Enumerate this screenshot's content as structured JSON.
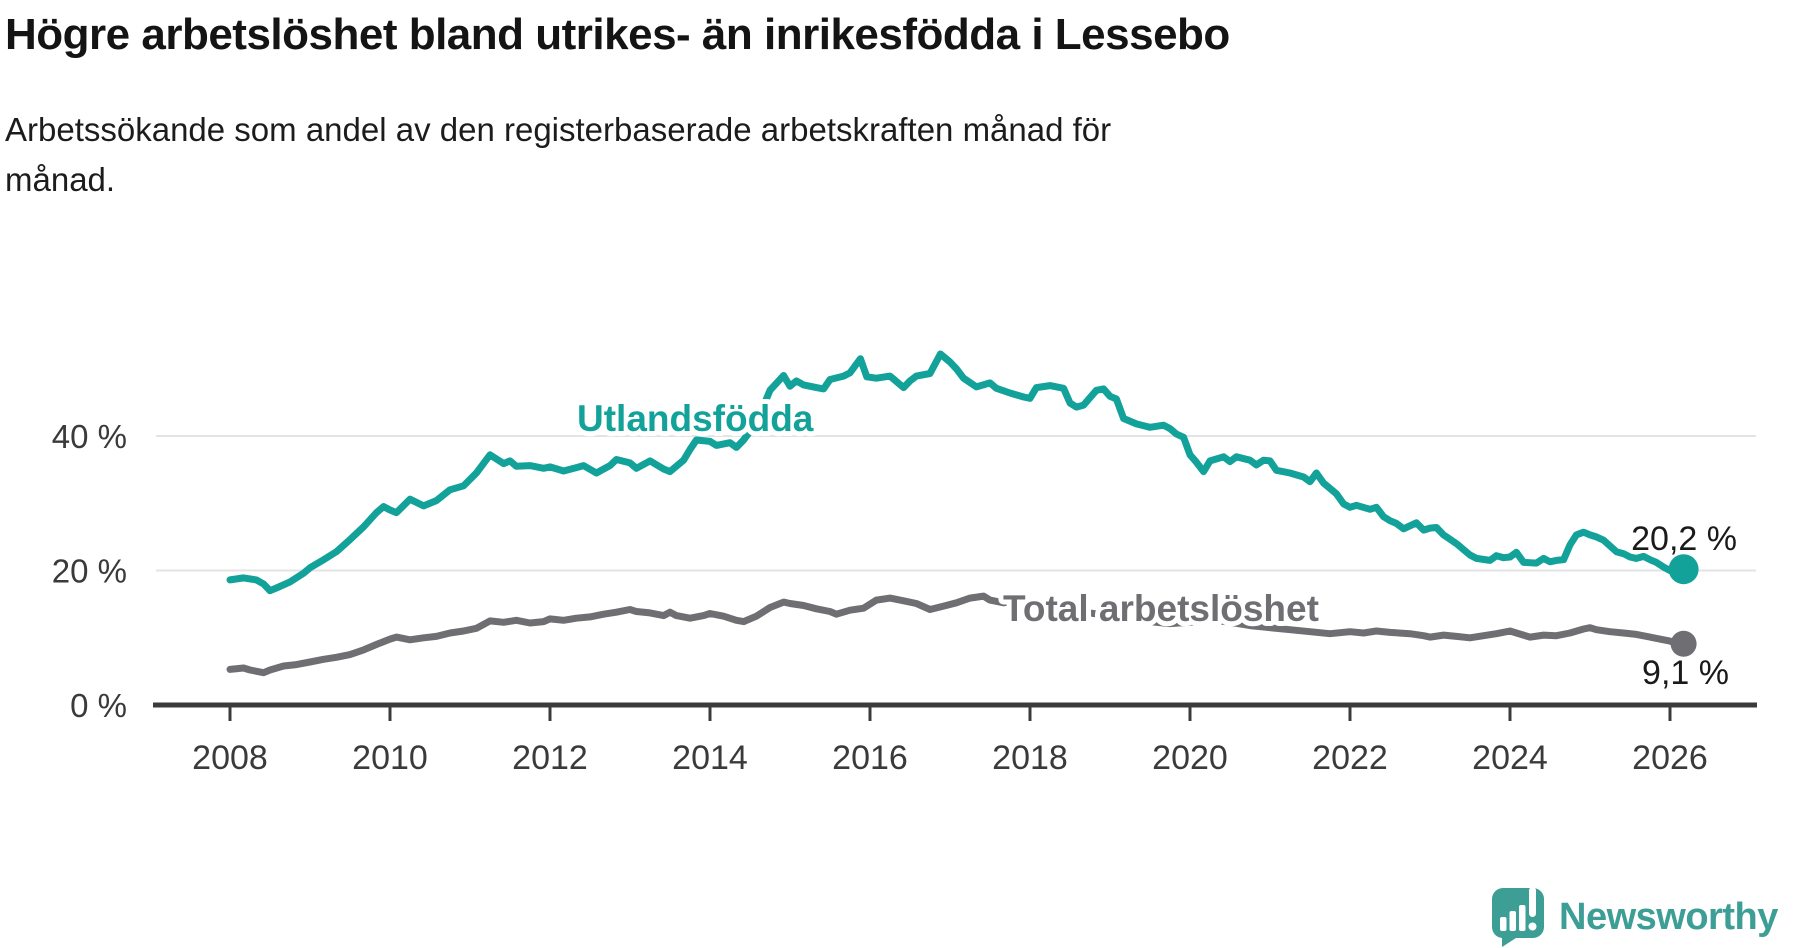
{
  "header": {
    "title": "Högre arbetslöshet bland utrikes- än inrikesfödda i Lessebo",
    "subtitle_lines": [
      "Arbetssökande som andel av den registerbaserade arbetskraften månad för",
      "månad."
    ]
  },
  "branding": {
    "logo_text": "Newsworthy",
    "logo_color": "#3d9e96"
  },
  "colors": {
    "utlandsfodda": "#12a29a",
    "total": "#6f6e72",
    "grid": "#e3e3e3",
    "axis": "#3b3b3b",
    "value_label": "#1a1a1a"
  },
  "chart_data": {
    "type": "line",
    "title": "Högre arbetslöshet bland utrikes- än inrikesfödda i Lessebo",
    "subtitle": "Arbetssökande som andel av den registerbaserade arbetskraften månad för månad.",
    "grid": "horizontal-only",
    "legend_position": "inline-labels-on-lines",
    "x_axis": {
      "range": [
        2008,
        2026.2
      ],
      "ticks": [
        "2008",
        "2010",
        "2012",
        "2014",
        "2016",
        "2018",
        "2020",
        "2022",
        "2024",
        "2026"
      ]
    },
    "y_axis": {
      "unit": "%",
      "range": [
        0,
        55
      ],
      "ticks": [
        {
          "value": 0,
          "label": "0 %"
        },
        {
          "value": 20,
          "label": "20 %"
        },
        {
          "value": 40,
          "label": "40 %"
        }
      ]
    },
    "series": [
      {
        "name": "Utlandsfödda",
        "color": "#12a29a",
        "end_value_label": "20,2 %",
        "end_value": 20.2,
        "points": [
          [
            2008.0,
            18.6
          ],
          [
            2008.17,
            18.9
          ],
          [
            2008.33,
            18.6
          ],
          [
            2008.42,
            18.0
          ],
          [
            2008.5,
            17.0
          ],
          [
            2008.58,
            17.4
          ],
          [
            2008.75,
            18.3
          ],
          [
            2008.92,
            19.6
          ],
          [
            2009.0,
            20.4
          ],
          [
            2009.17,
            21.6
          ],
          [
            2009.33,
            22.8
          ],
          [
            2009.5,
            24.6
          ],
          [
            2009.67,
            26.5
          ],
          [
            2009.83,
            28.6
          ],
          [
            2009.92,
            29.5
          ],
          [
            2010.0,
            29.0
          ],
          [
            2010.08,
            28.6
          ],
          [
            2010.25,
            30.6
          ],
          [
            2010.42,
            29.6
          ],
          [
            2010.58,
            30.4
          ],
          [
            2010.75,
            32.0
          ],
          [
            2010.92,
            32.6
          ],
          [
            2011.08,
            34.5
          ],
          [
            2011.25,
            37.2
          ],
          [
            2011.42,
            35.9
          ],
          [
            2011.5,
            36.3
          ],
          [
            2011.58,
            35.5
          ],
          [
            2011.75,
            35.6
          ],
          [
            2011.92,
            35.2
          ],
          [
            2012.0,
            35.4
          ],
          [
            2012.17,
            34.8
          ],
          [
            2012.33,
            35.3
          ],
          [
            2012.42,
            35.6
          ],
          [
            2012.58,
            34.5
          ],
          [
            2012.75,
            35.6
          ],
          [
            2012.83,
            36.5
          ],
          [
            2013.0,
            36.0
          ],
          [
            2013.08,
            35.2
          ],
          [
            2013.25,
            36.3
          ],
          [
            2013.42,
            35.1
          ],
          [
            2013.5,
            34.7
          ],
          [
            2013.67,
            36.4
          ],
          [
            2013.75,
            38.0
          ],
          [
            2013.83,
            39.4
          ],
          [
            2014.0,
            39.2
          ],
          [
            2014.08,
            38.6
          ],
          [
            2014.25,
            39.0
          ],
          [
            2014.33,
            38.3
          ],
          [
            2014.42,
            39.4
          ],
          [
            2014.58,
            42.0
          ],
          [
            2014.67,
            44.5
          ],
          [
            2014.75,
            46.8
          ],
          [
            2014.92,
            49.0
          ],
          [
            2015.0,
            47.4
          ],
          [
            2015.08,
            48.2
          ],
          [
            2015.17,
            47.6
          ],
          [
            2015.33,
            47.2
          ],
          [
            2015.42,
            47.0
          ],
          [
            2015.5,
            48.4
          ],
          [
            2015.67,
            48.9
          ],
          [
            2015.75,
            49.4
          ],
          [
            2015.88,
            51.5
          ],
          [
            2015.96,
            48.8
          ],
          [
            2016.08,
            48.6
          ],
          [
            2016.25,
            48.9
          ],
          [
            2016.42,
            47.2
          ],
          [
            2016.5,
            48.2
          ],
          [
            2016.58,
            48.9
          ],
          [
            2016.75,
            49.3
          ],
          [
            2016.88,
            52.2
          ],
          [
            2017.0,
            51.0
          ],
          [
            2017.08,
            50.0
          ],
          [
            2017.17,
            48.6
          ],
          [
            2017.33,
            47.3
          ],
          [
            2017.5,
            47.9
          ],
          [
            2017.58,
            47.1
          ],
          [
            2017.75,
            46.4
          ],
          [
            2017.92,
            45.8
          ],
          [
            2018.0,
            45.6
          ],
          [
            2018.08,
            47.2
          ],
          [
            2018.25,
            47.5
          ],
          [
            2018.42,
            47.1
          ],
          [
            2018.5,
            44.9
          ],
          [
            2018.58,
            44.3
          ],
          [
            2018.67,
            44.6
          ],
          [
            2018.83,
            46.8
          ],
          [
            2018.92,
            47.0
          ],
          [
            2019.0,
            45.9
          ],
          [
            2019.08,
            45.5
          ],
          [
            2019.17,
            42.6
          ],
          [
            2019.33,
            41.8
          ],
          [
            2019.5,
            41.3
          ],
          [
            2019.67,
            41.6
          ],
          [
            2019.75,
            41.1
          ],
          [
            2019.83,
            40.3
          ],
          [
            2019.92,
            39.8
          ],
          [
            2020.0,
            37.2
          ],
          [
            2020.08,
            36.1
          ],
          [
            2020.17,
            34.7
          ],
          [
            2020.25,
            36.3
          ],
          [
            2020.42,
            36.9
          ],
          [
            2020.5,
            36.2
          ],
          [
            2020.58,
            36.9
          ],
          [
            2020.75,
            36.4
          ],
          [
            2020.83,
            35.7
          ],
          [
            2020.92,
            36.4
          ],
          [
            2021.0,
            36.3
          ],
          [
            2021.08,
            34.9
          ],
          [
            2021.25,
            34.5
          ],
          [
            2021.42,
            33.9
          ],
          [
            2021.5,
            33.2
          ],
          [
            2021.58,
            34.5
          ],
          [
            2021.67,
            33.0
          ],
          [
            2021.83,
            31.4
          ],
          [
            2021.92,
            29.9
          ],
          [
            2022.0,
            29.4
          ],
          [
            2022.08,
            29.7
          ],
          [
            2022.25,
            29.1
          ],
          [
            2022.33,
            29.4
          ],
          [
            2022.42,
            28.0
          ],
          [
            2022.5,
            27.4
          ],
          [
            2022.58,
            27.0
          ],
          [
            2022.67,
            26.2
          ],
          [
            2022.83,
            27.1
          ],
          [
            2022.92,
            26.0
          ],
          [
            2023.0,
            26.3
          ],
          [
            2023.08,
            26.4
          ],
          [
            2023.17,
            25.3
          ],
          [
            2023.33,
            24.0
          ],
          [
            2023.5,
            22.3
          ],
          [
            2023.58,
            21.8
          ],
          [
            2023.75,
            21.5
          ],
          [
            2023.83,
            22.2
          ],
          [
            2023.92,
            21.9
          ],
          [
            2024.0,
            22.0
          ],
          [
            2024.08,
            22.7
          ],
          [
            2024.17,
            21.2
          ],
          [
            2024.33,
            21.1
          ],
          [
            2024.42,
            21.8
          ],
          [
            2024.5,
            21.3
          ],
          [
            2024.58,
            21.5
          ],
          [
            2024.67,
            21.6
          ],
          [
            2024.75,
            23.8
          ],
          [
            2024.83,
            25.3
          ],
          [
            2024.92,
            25.7
          ],
          [
            2025.0,
            25.3
          ],
          [
            2025.08,
            25.0
          ],
          [
            2025.17,
            24.5
          ],
          [
            2025.33,
            22.8
          ],
          [
            2025.42,
            22.5
          ],
          [
            2025.5,
            22.0
          ],
          [
            2025.58,
            21.8
          ],
          [
            2025.67,
            22.1
          ],
          [
            2025.75,
            21.6
          ],
          [
            2025.83,
            21.2
          ],
          [
            2025.92,
            20.5
          ],
          [
            2026.0,
            20.0
          ],
          [
            2026.08,
            20.4
          ],
          [
            2026.17,
            20.2
          ]
        ]
      },
      {
        "name": "Total arbetslöshet",
        "color": "#6f6e72",
        "end_value_label": "9,1 %",
        "end_value": 9.1,
        "points": [
          [
            2008.0,
            5.3
          ],
          [
            2008.17,
            5.5
          ],
          [
            2008.25,
            5.2
          ],
          [
            2008.42,
            4.8
          ],
          [
            2008.5,
            5.2
          ],
          [
            2008.67,
            5.8
          ],
          [
            2008.83,
            6.0
          ],
          [
            2009.0,
            6.4
          ],
          [
            2009.17,
            6.8
          ],
          [
            2009.33,
            7.1
          ],
          [
            2009.5,
            7.5
          ],
          [
            2009.67,
            8.2
          ],
          [
            2009.83,
            9.0
          ],
          [
            2010.0,
            9.8
          ],
          [
            2010.08,
            10.1
          ],
          [
            2010.25,
            9.7
          ],
          [
            2010.42,
            10.0
          ],
          [
            2010.58,
            10.2
          ],
          [
            2010.75,
            10.7
          ],
          [
            2010.92,
            11.0
          ],
          [
            2011.08,
            11.4
          ],
          [
            2011.25,
            12.5
          ],
          [
            2011.42,
            12.3
          ],
          [
            2011.58,
            12.6
          ],
          [
            2011.75,
            12.2
          ],
          [
            2011.92,
            12.4
          ],
          [
            2012.0,
            12.8
          ],
          [
            2012.17,
            12.6
          ],
          [
            2012.33,
            12.9
          ],
          [
            2012.5,
            13.1
          ],
          [
            2012.67,
            13.5
          ],
          [
            2012.83,
            13.8
          ],
          [
            2013.0,
            14.2
          ],
          [
            2013.08,
            13.9
          ],
          [
            2013.25,
            13.7
          ],
          [
            2013.42,
            13.3
          ],
          [
            2013.5,
            13.8
          ],
          [
            2013.58,
            13.3
          ],
          [
            2013.75,
            12.9
          ],
          [
            2013.92,
            13.3
          ],
          [
            2014.0,
            13.6
          ],
          [
            2014.17,
            13.2
          ],
          [
            2014.33,
            12.6
          ],
          [
            2014.42,
            12.4
          ],
          [
            2014.58,
            13.2
          ],
          [
            2014.75,
            14.5
          ],
          [
            2014.92,
            15.3
          ],
          [
            2015.0,
            15.1
          ],
          [
            2015.17,
            14.8
          ],
          [
            2015.33,
            14.3
          ],
          [
            2015.5,
            13.9
          ],
          [
            2015.58,
            13.5
          ],
          [
            2015.75,
            14.1
          ],
          [
            2015.92,
            14.4
          ],
          [
            2016.08,
            15.6
          ],
          [
            2016.25,
            15.9
          ],
          [
            2016.42,
            15.5
          ],
          [
            2016.58,
            15.1
          ],
          [
            2016.75,
            14.2
          ],
          [
            2016.92,
            14.7
          ],
          [
            2017.08,
            15.2
          ],
          [
            2017.25,
            15.9
          ],
          [
            2017.42,
            16.2
          ],
          [
            2017.5,
            15.6
          ],
          [
            2017.67,
            15.2
          ],
          [
            2017.83,
            15.5
          ],
          [
            2018.0,
            14.9
          ],
          [
            2018.25,
            14.5
          ],
          [
            2018.5,
            14.1
          ],
          [
            2018.75,
            13.7
          ],
          [
            2019.0,
            13.2
          ],
          [
            2019.25,
            12.8
          ],
          [
            2019.5,
            12.4
          ],
          [
            2019.75,
            12.1
          ],
          [
            2020.0,
            12.3
          ],
          [
            2020.25,
            12.7
          ],
          [
            2020.5,
            12.3
          ],
          [
            2020.75,
            11.8
          ],
          [
            2021.0,
            11.5
          ],
          [
            2021.25,
            11.2
          ],
          [
            2021.5,
            10.9
          ],
          [
            2021.75,
            10.6
          ],
          [
            2022.0,
            10.9
          ],
          [
            2022.17,
            10.7
          ],
          [
            2022.33,
            11.0
          ],
          [
            2022.5,
            10.8
          ],
          [
            2022.75,
            10.6
          ],
          [
            2022.92,
            10.3
          ],
          [
            2023.0,
            10.1
          ],
          [
            2023.17,
            10.4
          ],
          [
            2023.33,
            10.2
          ],
          [
            2023.5,
            10.0
          ],
          [
            2023.67,
            10.3
          ],
          [
            2023.83,
            10.6
          ],
          [
            2024.0,
            11.0
          ],
          [
            2024.08,
            10.7
          ],
          [
            2024.25,
            10.1
          ],
          [
            2024.42,
            10.4
          ],
          [
            2024.58,
            10.3
          ],
          [
            2024.75,
            10.7
          ],
          [
            2024.92,
            11.3
          ],
          [
            2025.0,
            11.5
          ],
          [
            2025.08,
            11.2
          ],
          [
            2025.25,
            10.9
          ],
          [
            2025.42,
            10.7
          ],
          [
            2025.58,
            10.5
          ],
          [
            2025.75,
            10.1
          ],
          [
            2025.92,
            9.7
          ],
          [
            2026.0,
            9.5
          ],
          [
            2026.08,
            9.2
          ],
          [
            2026.17,
            9.1
          ]
        ]
      }
    ]
  }
}
